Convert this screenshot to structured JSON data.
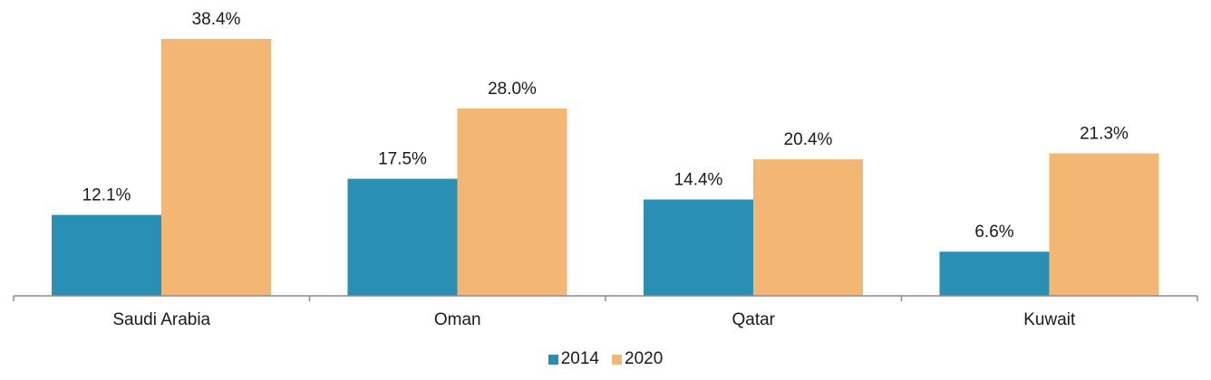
{
  "chart_data": {
    "type": "bar",
    "categories": [
      "Saudi Arabia",
      "Oman",
      "Qatar",
      "Kuwait"
    ],
    "series": [
      {
        "name": "2014",
        "values": [
          12.1,
          17.5,
          14.4,
          6.6
        ],
        "labels": [
          "12.1%",
          "17.5%",
          "14.4%",
          "6.6%"
        ],
        "color": "#2a8fb5"
      },
      {
        "name": "2020",
        "values": [
          38.4,
          28.0,
          20.4,
          21.3
        ],
        "labels": [
          "38.4%",
          "28.0%",
          "20.4%",
          "21.3%"
        ],
        "color": "#f4b673"
      }
    ],
    "title": "",
    "xlabel": "",
    "ylabel": "",
    "ylim": [
      0,
      40
    ],
    "grid": false,
    "legend_position": "bottom",
    "axis_color": "#8c8c8c"
  }
}
